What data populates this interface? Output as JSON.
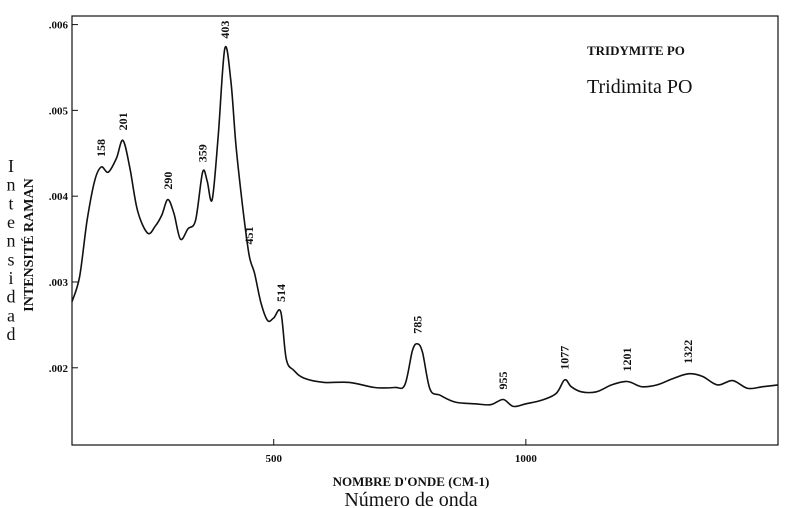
{
  "chart_data": {
    "type": "line",
    "title": "TRIDYMITE PO",
    "subtitle": "Tridimita PO",
    "xlabel": "NOMBRE D'ONDE (CM-1)",
    "xlabel_secondary": "Número de onda",
    "ylabel": "INTENSITÉ RAMAN",
    "ylabel_secondary": "Intensidad",
    "xlim": [
      100,
      1500
    ],
    "ylim": [
      0.0011,
      0.0061
    ],
    "x_ticks": [
      500,
      1000
    ],
    "x_tick_labels": [
      "500",
      "1000"
    ],
    "y_ticks": [
      0.002,
      0.003,
      0.004,
      0.005,
      0.006
    ],
    "y_tick_labels": [
      ".002",
      ".003",
      ".004",
      ".005",
      ".006"
    ],
    "grid": false,
    "series": [
      {
        "x": [
          100,
          115,
          130,
          145,
          158,
          172,
          188,
          201,
          215,
          230,
          250,
          265,
          278,
          290,
          302,
          315,
          330,
          345,
          359,
          368,
          378,
          390,
          403,
          415,
          425,
          438,
          451,
          462,
          475,
          488,
          500,
          514,
          525,
          540,
          560,
          600,
          650,
          700,
          740,
          760,
          775,
          785,
          795,
          810,
          830,
          860,
          900,
          930,
          955,
          975,
          1000,
          1030,
          1060,
          1077,
          1090,
          1110,
          1140,
          1170,
          1201,
          1230,
          1260,
          1290,
          1322,
          1350,
          1380,
          1410,
          1440,
          1470,
          1500
        ],
        "values": [
          0.00277,
          0.00306,
          0.00372,
          0.00418,
          0.00434,
          0.00428,
          0.00444,
          0.00465,
          0.00432,
          0.00383,
          0.00357,
          0.00365,
          0.00378,
          0.00396,
          0.0038,
          0.0035,
          0.00362,
          0.00372,
          0.00428,
          0.00418,
          0.00396,
          0.0047,
          0.00572,
          0.00535,
          0.0046,
          0.0039,
          0.00332,
          0.0031,
          0.00275,
          0.00255,
          0.00258,
          0.00265,
          0.0021,
          0.00197,
          0.00188,
          0.00183,
          0.00183,
          0.00177,
          0.00177,
          0.0018,
          0.0022,
          0.00228,
          0.00218,
          0.00175,
          0.00168,
          0.0016,
          0.00158,
          0.00157,
          0.00163,
          0.00155,
          0.00158,
          0.00162,
          0.0017,
          0.00186,
          0.00178,
          0.00172,
          0.00172,
          0.0018,
          0.00184,
          0.00178,
          0.0018,
          0.00187,
          0.00193,
          0.0019,
          0.0018,
          0.00185,
          0.00176,
          0.00178,
          0.0018
        ]
      }
    ],
    "annotations": [
      {
        "text": "158",
        "x": 158,
        "y": 0.00434
      },
      {
        "text": "201",
        "x": 201,
        "y": 0.00465
      },
      {
        "text": "290",
        "x": 290,
        "y": 0.00396
      },
      {
        "text": "359",
        "x": 359,
        "y": 0.00428
      },
      {
        "text": "403",
        "x": 403,
        "y": 0.00572
      },
      {
        "text": "451",
        "x": 451,
        "y": 0.00332
      },
      {
        "text": "514",
        "x": 514,
        "y": 0.00265
      },
      {
        "text": "785",
        "x": 785,
        "y": 0.00228
      },
      {
        "text": "955",
        "x": 955,
        "y": 0.00163
      },
      {
        "text": "1077",
        "x": 1077,
        "y": 0.00186
      },
      {
        "text": "1201",
        "x": 1201,
        "y": 0.00184
      },
      {
        "text": "1322",
        "x": 1322,
        "y": 0.00193
      }
    ],
    "line_color": "#111111"
  }
}
